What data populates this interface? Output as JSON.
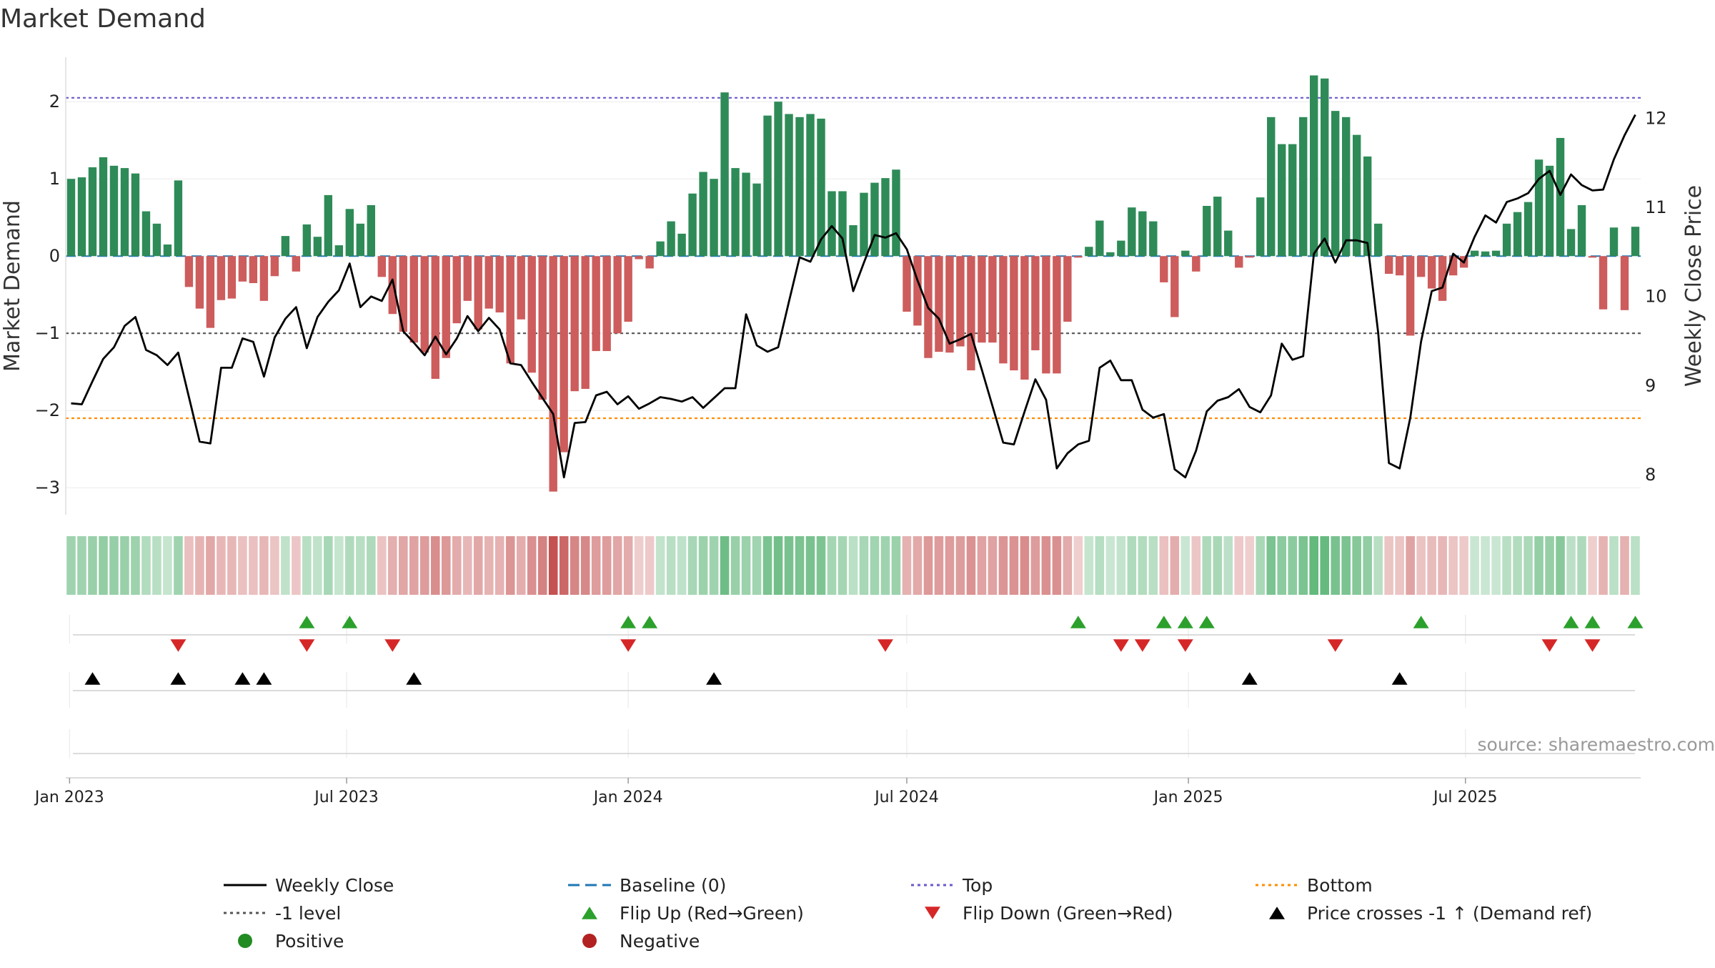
{
  "chart_data": {
    "type": "bar",
    "title": "Market Demand",
    "ylabel": "Market Demand",
    "y2label": "Weekly Close Price",
    "ylim": [
      -3.35,
      2.65
    ],
    "y2lim": [
      7.55,
      12.75
    ],
    "yticks": [
      2,
      1,
      0,
      -1,
      -2,
      -3
    ],
    "ytick_labels": [
      "2",
      "1",
      "0",
      "−1",
      "−2",
      "−3"
    ],
    "y2ticks": [
      12,
      11,
      10,
      9,
      8
    ],
    "y2tick_labels": [
      "12",
      "11",
      "10",
      "9",
      "8"
    ],
    "x_start": "2023-01-02",
    "week_days": 7,
    "xticks": [
      {
        "label": "Jan 2023",
        "date": "2023-01-01"
      },
      {
        "label": "Jul 2023",
        "date": "2023-07-01"
      },
      {
        "label": "Jan 2024",
        "date": "2024-01-01"
      },
      {
        "label": "Jul 2024",
        "date": "2024-07-01"
      },
      {
        "label": "Jan 2025",
        "date": "2025-01-01"
      },
      {
        "label": "Jul 2025",
        "date": "2025-07-01"
      }
    ],
    "demand": [
      1.0,
      1.02,
      1.15,
      1.28,
      1.17,
      1.14,
      1.07,
      0.58,
      0.42,
      0.15,
      0.98,
      -0.4,
      -0.68,
      -0.93,
      -0.57,
      -0.55,
      -0.33,
      -0.35,
      -0.58,
      -0.26,
      0.26,
      -0.2,
      0.41,
      0.25,
      0.79,
      0.14,
      0.61,
      0.42,
      0.66,
      -0.27,
      -0.75,
      -0.98,
      -1.12,
      -1.25,
      -1.59,
      -1.32,
      -0.87,
      -0.58,
      -0.95,
      -0.68,
      -0.73,
      -1.39,
      -0.82,
      -1.51,
      -1.86,
      -3.05,
      -2.54,
      -1.75,
      -1.72,
      -1.23,
      -1.23,
      -1.0,
      -0.85,
      -0.04,
      -0.16,
      0.19,
      0.45,
      0.29,
      0.81,
      1.09,
      1.0,
      2.12,
      1.14,
      1.08,
      0.94,
      1.82,
      2.0,
      1.84,
      1.8,
      1.84,
      1.78,
      0.84,
      0.84,
      0.4,
      0.82,
      0.95,
      1.01,
      1.12,
      -0.72,
      -0.9,
      -1.32,
      -1.24,
      -1.25,
      -1.17,
      -1.48,
      -1.12,
      -1.12,
      -1.39,
      -1.48,
      -1.6,
      -1.22,
      -1.52,
      -1.52,
      -0.85,
      -0.02,
      0.12,
      0.46,
      0.05,
      0.2,
      0.63,
      0.58,
      0.45,
      -0.34,
      -0.79,
      0.07,
      -0.2,
      0.65,
      0.77,
      0.33,
      -0.15,
      -0.02,
      0.76,
      1.8,
      1.45,
      1.45,
      1.8,
      2.34,
      2.3,
      1.88,
      1.8,
      1.57,
      1.29,
      0.42,
      -0.23,
      -0.25,
      -1.03,
      -0.27,
      -0.42,
      -0.58,
      -0.25,
      -0.15,
      0.07,
      0.06,
      0.07,
      0.42,
      0.57,
      0.7,
      1.25,
      1.17,
      1.53,
      0.35,
      0.66,
      -0.02,
      -0.69,
      0.37,
      -0.7,
      0.38
    ],
    "close": [
      8.8,
      8.79,
      9.05,
      9.3,
      9.43,
      9.67,
      9.77,
      9.4,
      9.34,
      9.23,
      9.37,
      8.87,
      8.37,
      8.35,
      9.2,
      9.2,
      9.53,
      9.49,
      9.1,
      9.54,
      9.75,
      9.88,
      9.42,
      9.77,
      9.94,
      10.07,
      10.37,
      9.88,
      10.0,
      9.95,
      10.19,
      9.61,
      9.48,
      9.34,
      9.55,
      9.35,
      9.53,
      9.78,
      9.61,
      9.76,
      9.63,
      9.25,
      9.23,
      9.04,
      8.86,
      8.68,
      7.97,
      8.58,
      8.59,
      8.89,
      8.93,
      8.79,
      8.88,
      8.74,
      8.8,
      8.87,
      8.85,
      8.82,
      8.87,
      8.75,
      8.86,
      8.97,
      8.97,
      9.8,
      9.45,
      9.38,
      9.43,
      9.94,
      10.44,
      10.39,
      10.64,
      10.79,
      10.65,
      10.06,
      10.38,
      10.69,
      10.66,
      10.71,
      10.53,
      10.18,
      9.87,
      9.75,
      9.47,
      9.52,
      9.58,
      9.18,
      8.77,
      8.36,
      8.34,
      8.71,
      9.07,
      8.84,
      8.07,
      8.24,
      8.34,
      8.38,
      9.2,
      9.28,
      9.06,
      9.06,
      8.73,
      8.64,
      8.68,
      8.06,
      7.97,
      8.27,
      8.71,
      8.83,
      8.87,
      8.96,
      8.76,
      8.7,
      8.89,
      9.47,
      9.29,
      9.33,
      10.48,
      10.65,
      10.38,
      10.63,
      10.63,
      10.6,
      9.59,
      8.13,
      8.07,
      8.64,
      9.49,
      10.06,
      10.1,
      10.48,
      10.38,
      10.67,
      10.91,
      10.83,
      11.06,
      11.1,
      11.16,
      11.32,
      11.41,
      11.14,
      11.37,
      11.25,
      11.19,
      11.2,
      11.54,
      11.81,
      12.04
    ]
  },
  "bands": {
    "flip_up_marks": [
      11,
      13,
      26,
      27,
      47,
      51,
      52,
      53,
      63,
      70,
      71,
      73
    ],
    "flip_down_marks": [
      5,
      11,
      15,
      26,
      38,
      49,
      50,
      52,
      59,
      69,
      71
    ],
    "price_cross_marks": [
      1,
      5,
      8,
      9,
      16,
      30,
      55,
      62
    ]
  },
  "legend": {
    "items": [
      {
        "label": "Weekly Close",
        "symbol": "solid-line",
        "color": "#000000"
      },
      {
        "label": "Baseline (0)",
        "symbol": "dashed-line",
        "color": "#1f77b4"
      },
      {
        "label": "Top",
        "symbol": "dotted-line",
        "color": "#6a5acd"
      },
      {
        "label": "Bottom",
        "symbol": "dotted-line",
        "color": "#ff8c00"
      },
      {
        "label": "-1 level",
        "symbol": "dotted-line",
        "color": "#555555"
      },
      {
        "label": "Flip Up (Red→Green)",
        "symbol": "triangle-up",
        "color": "#2ca02c"
      },
      {
        "label": "Flip Down (Green→Red)",
        "symbol": "triangle-down",
        "color": "#d62728"
      },
      {
        "label": "Price crosses -1 ↑ (Demand ref)",
        "symbol": "triangle-up",
        "color": "#000000"
      },
      {
        "label": "Positive",
        "symbol": "circle",
        "color": "#228b22"
      },
      {
        "label": "Negative",
        "symbol": "circle",
        "color": "#b22222"
      }
    ]
  },
  "reference_lines": {
    "top": 2.05,
    "bottom": -2.1,
    "minus_one": -1.0,
    "baseline": 0
  },
  "source": "source: sharemaestro.com",
  "colors": {
    "positive_bar": "#2e8b57",
    "negative_bar": "#cd5c5c",
    "top_line": "#6a5acd",
    "bottom_line": "#ff8c00",
    "minus_one_line": "#555555",
    "baseline": "#1f77b4",
    "flip_up": "#2ca02c",
    "flip_down": "#d62728",
    "price_line": "#000000"
  }
}
